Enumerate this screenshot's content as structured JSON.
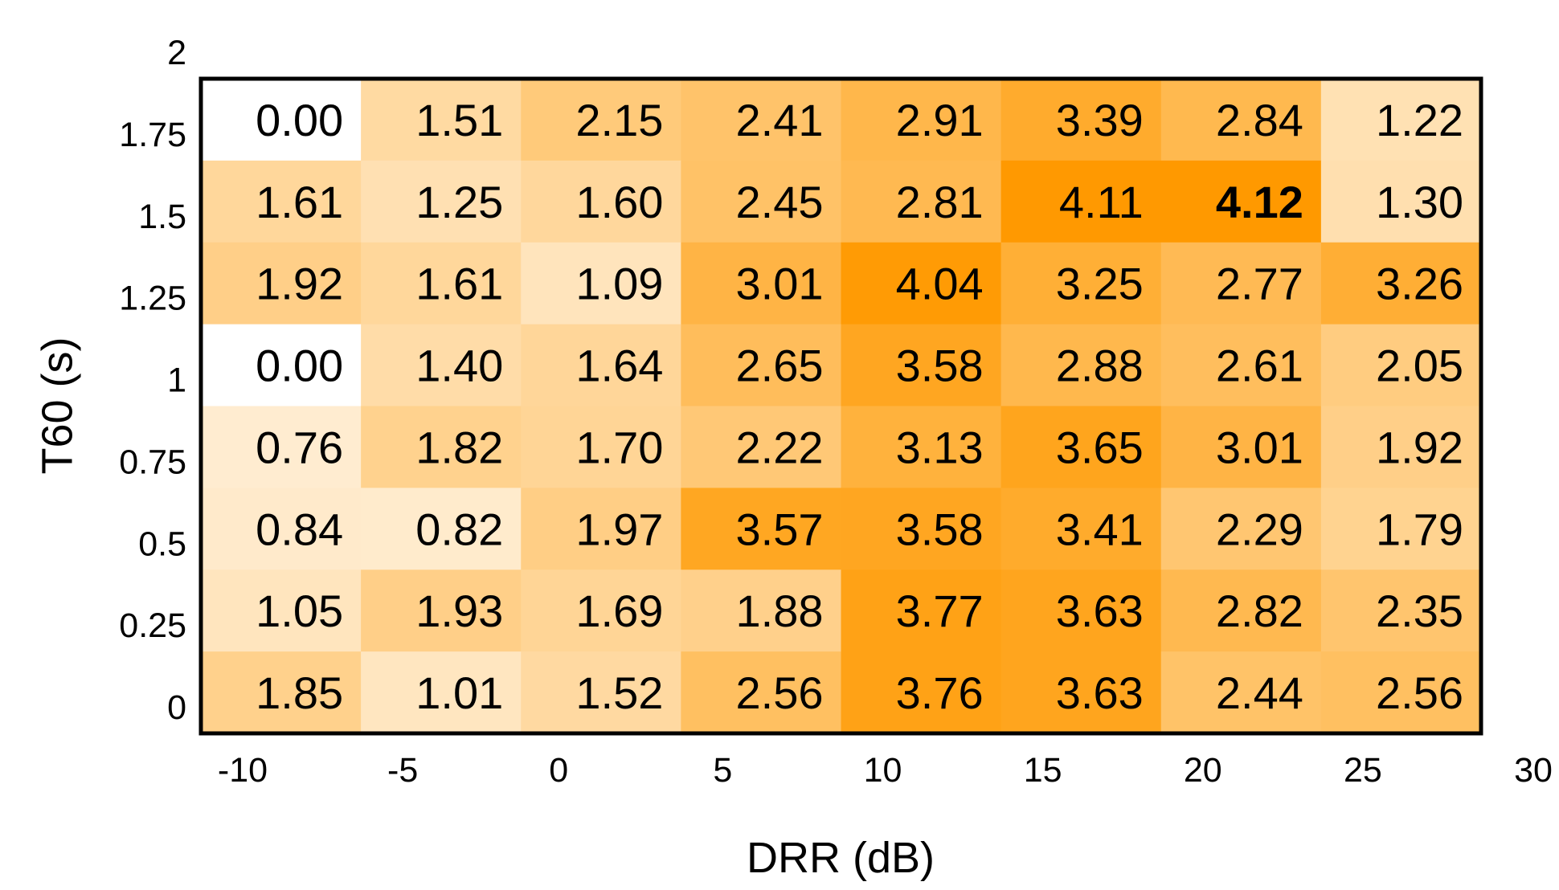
{
  "chart_data": {
    "type": "heatmap",
    "title": "",
    "xlabel": "DRR (dB)",
    "ylabel": "T60 (s)",
    "x_ticks": [
      "-10",
      "-5",
      "0",
      "5",
      "10",
      "15",
      "20",
      "25",
      "30"
    ],
    "y_ticks": [
      "0",
      "0.25",
      "0.5",
      "0.75",
      "1",
      "1.25",
      "1.5",
      "1.75",
      "2"
    ],
    "rows_top_to_bottom": [
      [
        "0.00",
        "1.51",
        "2.15",
        "2.41",
        "2.91",
        "3.39",
        "2.84",
        "1.22"
      ],
      [
        "1.61",
        "1.25",
        "1.60",
        "2.45",
        "2.81",
        "4.11",
        "4.12",
        "1.30"
      ],
      [
        "1.92",
        "1.61",
        "1.09",
        "3.01",
        "4.04",
        "3.25",
        "2.77",
        "3.26"
      ],
      [
        "0.00",
        "1.40",
        "1.64",
        "2.65",
        "3.58",
        "2.88",
        "2.61",
        "2.05"
      ],
      [
        "0.76",
        "1.82",
        "1.70",
        "2.22",
        "3.13",
        "3.65",
        "3.01",
        "1.92"
      ],
      [
        "0.84",
        "0.82",
        "1.97",
        "3.57",
        "3.58",
        "3.41",
        "2.29",
        "1.79"
      ],
      [
        "1.05",
        "1.93",
        "1.69",
        "1.88",
        "3.77",
        "3.63",
        "2.82",
        "2.35"
      ],
      [
        "1.85",
        "1.01",
        "1.52",
        "2.56",
        "3.76",
        "3.63",
        "2.44",
        "2.56"
      ]
    ],
    "highlight": {
      "row": 1,
      "col": 6
    },
    "color_low": "#ffffff",
    "color_high": "#ff9900",
    "value_range": [
      0,
      4.12
    ],
    "grid": false,
    "legend": "none"
  }
}
